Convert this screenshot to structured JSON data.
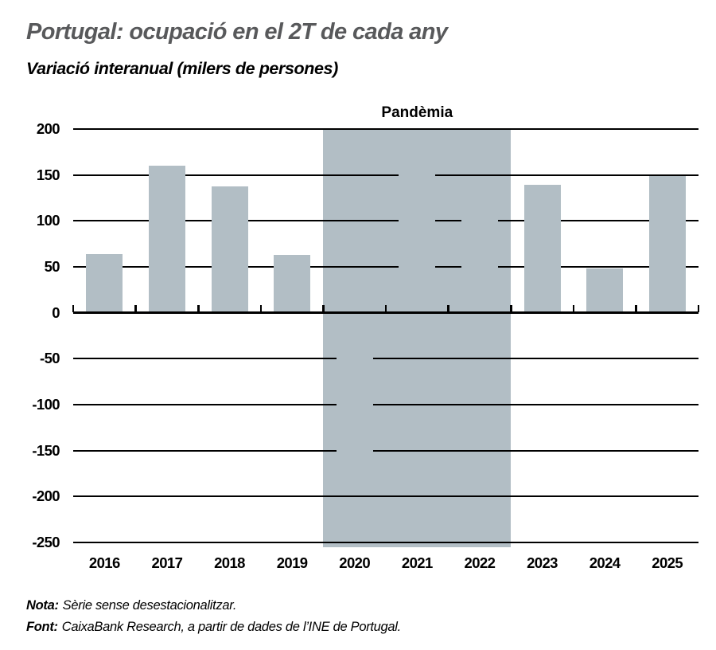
{
  "header": {
    "title": "Portugal: ocupació en el 2T de cada any",
    "subtitle": "Variació interanual (milers de persones)"
  },
  "footer": {
    "note_label": "Nota:",
    "note_text": "Sèrie sense desestacionalitzar.",
    "source_label": "Font:",
    "source_text": "CaixaBank Research, a partir de dades de l’INE de Portugal."
  },
  "colors": {
    "bar": "#b2bec5",
    "band": "#b2bec5",
    "title": "#58595b",
    "grid": "#000000",
    "background": "#ffffff"
  },
  "chart_data": {
    "type": "bar",
    "title": "Portugal: ocupació en el 2T de cada any",
    "subtitle": "Variació interanual (milers de persones)",
    "categories": [
      "2016",
      "2017",
      "2018",
      "2019",
      "2020",
      "2021",
      "2022",
      "2023",
      "2024",
      "2025"
    ],
    "values": [
      64,
      160,
      138,
      63,
      -185,
      164,
      118,
      139,
      48,
      149
    ],
    "ylim": [
      -250,
      200
    ],
    "yticks": [
      200,
      150,
      100,
      50,
      0,
      -50,
      -100,
      -150,
      -200,
      -250
    ],
    "grid": "horizontal",
    "legend": "none",
    "annotation": {
      "label": "Pandèmia",
      "band_start_category": "2020",
      "band_end_category": "2022",
      "note": "shaded band same color as bars, hides 2020-2022 bars"
    }
  }
}
